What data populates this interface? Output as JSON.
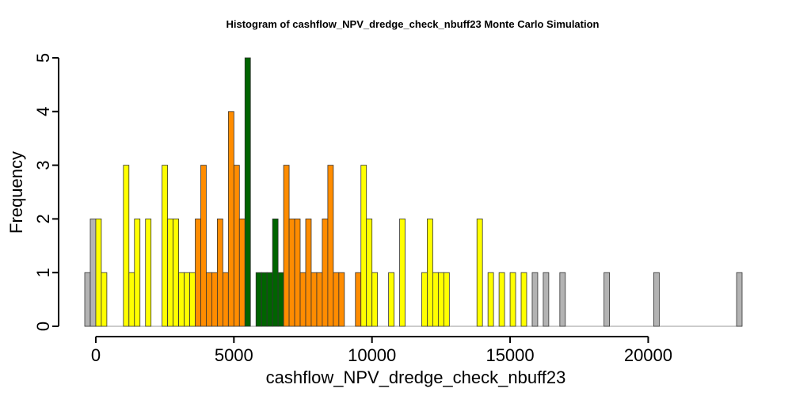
{
  "chart_data": {
    "type": "bar",
    "title": "Histogram of  cashflow_NPV_dredge_check_nbuff23  Monte Carlo Simulation",
    "xlabel": "cashflow_NPV_dredge_check_nbuff23",
    "ylabel": "Frequency",
    "xlim": [
      -400,
      23400
    ],
    "ylim": [
      0,
      5
    ],
    "bin_width": 200,
    "bin_start": -400,
    "x_ticks": [
      0,
      5000,
      10000,
      15000,
      20000
    ],
    "y_ticks": [
      0,
      1,
      2,
      3,
      4,
      5
    ],
    "colors": {
      "gray": "#b3b3b3",
      "yellow": "#ffff00",
      "orange": "#ff8c00",
      "green": "#006400",
      "edge": "#333333"
    },
    "bins": [
      {
        "x": -400,
        "count": 1,
        "color": "gray"
      },
      {
        "x": -200,
        "count": 2,
        "color": "gray"
      },
      {
        "x": 0,
        "count": 2,
        "color": "yellow"
      },
      {
        "x": 200,
        "count": 1,
        "color": "yellow"
      },
      {
        "x": 1000,
        "count": 3,
        "color": "yellow"
      },
      {
        "x": 1200,
        "count": 1,
        "color": "yellow"
      },
      {
        "x": 1400,
        "count": 2,
        "color": "yellow"
      },
      {
        "x": 1800,
        "count": 2,
        "color": "yellow"
      },
      {
        "x": 2400,
        "count": 3,
        "color": "yellow"
      },
      {
        "x": 2600,
        "count": 2,
        "color": "yellow"
      },
      {
        "x": 2800,
        "count": 2,
        "color": "yellow"
      },
      {
        "x": 3000,
        "count": 1,
        "color": "yellow"
      },
      {
        "x": 3200,
        "count": 1,
        "color": "yellow"
      },
      {
        "x": 3400,
        "count": 1,
        "color": "yellow"
      },
      {
        "x": 3600,
        "count": 2,
        "color": "orange"
      },
      {
        "x": 3800,
        "count": 3,
        "color": "orange"
      },
      {
        "x": 4000,
        "count": 1,
        "color": "orange"
      },
      {
        "x": 4200,
        "count": 1,
        "color": "orange"
      },
      {
        "x": 4400,
        "count": 2,
        "color": "orange"
      },
      {
        "x": 4600,
        "count": 1,
        "color": "orange"
      },
      {
        "x": 4800,
        "count": 4,
        "color": "orange"
      },
      {
        "x": 5000,
        "count": 3,
        "color": "orange"
      },
      {
        "x": 5200,
        "count": 2,
        "color": "orange"
      },
      {
        "x": 5400,
        "count": 5,
        "color": "green"
      },
      {
        "x": 5800,
        "count": 1,
        "color": "green"
      },
      {
        "x": 6000,
        "count": 1,
        "color": "green"
      },
      {
        "x": 6200,
        "count": 1,
        "color": "green"
      },
      {
        "x": 6400,
        "count": 2,
        "color": "green"
      },
      {
        "x": 6600,
        "count": 1,
        "color": "green"
      },
      {
        "x": 6800,
        "count": 3,
        "color": "orange"
      },
      {
        "x": 7000,
        "count": 2,
        "color": "orange"
      },
      {
        "x": 7200,
        "count": 2,
        "color": "orange"
      },
      {
        "x": 7400,
        "count": 1,
        "color": "orange"
      },
      {
        "x": 7600,
        "count": 2,
        "color": "orange"
      },
      {
        "x": 7800,
        "count": 1,
        "color": "orange"
      },
      {
        "x": 8000,
        "count": 1,
        "color": "orange"
      },
      {
        "x": 8200,
        "count": 2,
        "color": "orange"
      },
      {
        "x": 8400,
        "count": 3,
        "color": "orange"
      },
      {
        "x": 8600,
        "count": 1,
        "color": "orange"
      },
      {
        "x": 8800,
        "count": 1,
        "color": "orange"
      },
      {
        "x": 9400,
        "count": 1,
        "color": "orange"
      },
      {
        "x": 9600,
        "count": 3,
        "color": "yellow"
      },
      {
        "x": 9800,
        "count": 2,
        "color": "yellow"
      },
      {
        "x": 10000,
        "count": 1,
        "color": "yellow"
      },
      {
        "x": 10600,
        "count": 1,
        "color": "yellow"
      },
      {
        "x": 11000,
        "count": 2,
        "color": "yellow"
      },
      {
        "x": 11800,
        "count": 1,
        "color": "yellow"
      },
      {
        "x": 12000,
        "count": 2,
        "color": "yellow"
      },
      {
        "x": 12200,
        "count": 1,
        "color": "yellow"
      },
      {
        "x": 12400,
        "count": 1,
        "color": "yellow"
      },
      {
        "x": 12600,
        "count": 1,
        "color": "yellow"
      },
      {
        "x": 13800,
        "count": 2,
        "color": "yellow"
      },
      {
        "x": 14200,
        "count": 1,
        "color": "yellow"
      },
      {
        "x": 14600,
        "count": 1,
        "color": "yellow"
      },
      {
        "x": 15000,
        "count": 1,
        "color": "yellow"
      },
      {
        "x": 15400,
        "count": 1,
        "color": "yellow"
      },
      {
        "x": 15800,
        "count": 1,
        "color": "gray"
      },
      {
        "x": 16200,
        "count": 1,
        "color": "gray"
      },
      {
        "x": 16800,
        "count": 1,
        "color": "gray"
      },
      {
        "x": 18400,
        "count": 1,
        "color": "gray"
      },
      {
        "x": 20200,
        "count": 1,
        "color": "gray"
      },
      {
        "x": 23200,
        "count": 1,
        "color": "gray"
      }
    ]
  }
}
